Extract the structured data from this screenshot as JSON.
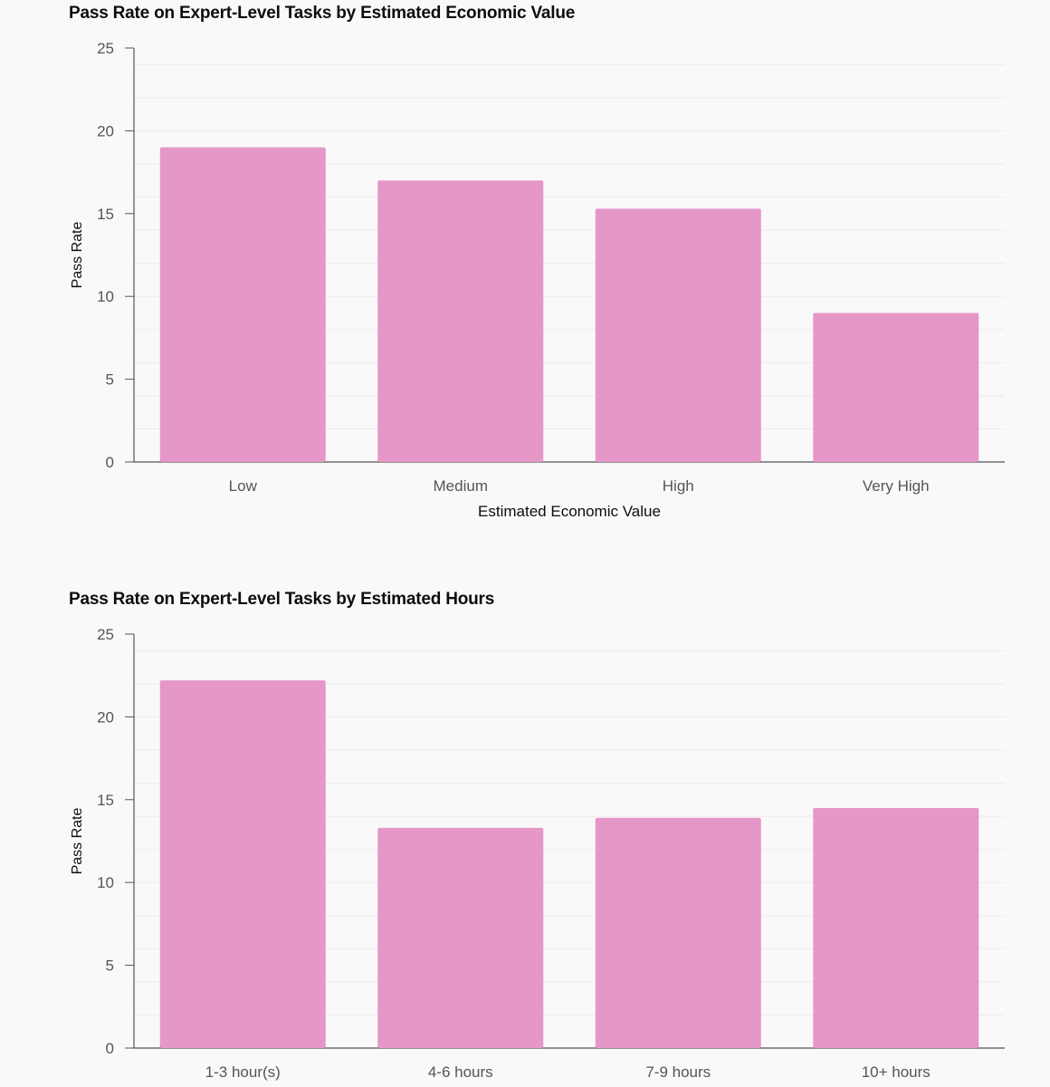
{
  "charts_style": {
    "bar_color": "#e597c7",
    "grid_color": "#f3e8ec",
    "axis_color": "#555555"
  },
  "chart_data": [
    {
      "type": "bar",
      "title": "Pass Rate on Expert-Level Tasks by Estimated Economic Value",
      "xlabel": "Estimated Economic Value",
      "ylabel": "Pass Rate",
      "categories": [
        "Low",
        "Medium",
        "High",
        "Very High"
      ],
      "values": [
        19.0,
        17.0,
        15.3,
        9.0
      ],
      "ylim": [
        0,
        25
      ],
      "yticks": [
        "0",
        "5",
        "10",
        "15",
        "20",
        "25"
      ],
      "grid": true
    },
    {
      "type": "bar",
      "title": "Pass Rate on Expert-Level Tasks by Estimated Hours",
      "xlabel": "",
      "ylabel": "Pass Rate",
      "categories": [
        "1-3 hour(s)",
        "4-6 hours",
        "7-9 hours",
        "10+ hours"
      ],
      "values": [
        22.2,
        13.3,
        13.9,
        14.5
      ],
      "ylim": [
        0,
        25
      ],
      "yticks": [
        "0",
        "5",
        "10",
        "15",
        "20",
        "25"
      ],
      "grid": true
    }
  ]
}
